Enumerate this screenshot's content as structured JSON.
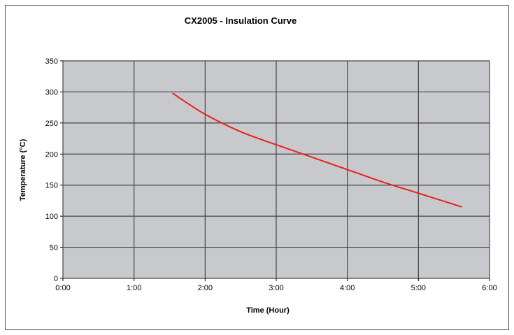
{
  "chart_data": {
    "type": "line",
    "title": "CX2005 - Insulation Curve",
    "xlabel": "Time (Hour)",
    "ylabel": "Temperature (°C)",
    "xlim": [
      0,
      6
    ],
    "ylim": [
      0,
      350
    ],
    "xticks": [
      0,
      1,
      2,
      3,
      4,
      5,
      6
    ],
    "xtick_labels": [
      "0:00",
      "1:00",
      "2:00",
      "3:00",
      "4:00",
      "5:00",
      "6:00"
    ],
    "yticks": [
      0,
      50,
      100,
      150,
      200,
      250,
      300,
      350
    ],
    "ytick_labels": [
      "0",
      "50",
      "100",
      "150",
      "200",
      "250",
      "300",
      "350"
    ],
    "grid": true,
    "series": [
      {
        "name": "Insulation Curve",
        "color": "#e8211f",
        "x": [
          1.54,
          2.0,
          2.5,
          3.0,
          3.5,
          4.0,
          4.5,
          5.0,
          5.61
        ],
        "y": [
          298,
          264,
          236,
          215,
          195,
          175,
          155,
          137,
          115
        ]
      }
    ],
    "colors": {
      "plot_bg": "#c8c9cc",
      "grid": "#444444"
    }
  }
}
